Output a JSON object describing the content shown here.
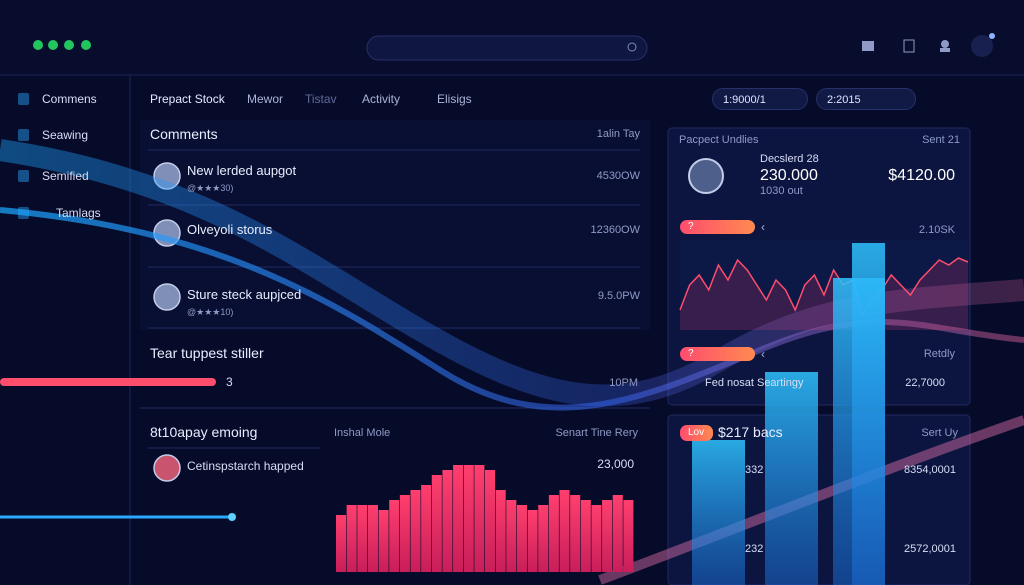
{
  "sidebar": {
    "items": [
      "Commens",
      "Seawing",
      "Semified",
      "Tamlags"
    ]
  },
  "nav": {
    "tabs": [
      "Prepact Stock",
      "Mewor",
      "Tistav",
      "Activity",
      "Elisigs"
    ],
    "pills": [
      "1:9000/1",
      "2:2015"
    ]
  },
  "comments": {
    "title": "Comments",
    "meta": "1alin Tay",
    "rows": [
      {
        "name": "New lerded aupgot",
        "sub": "@★★★30)",
        "value": "4530OW"
      },
      {
        "name": "Olveyoli storus",
        "value": "12360OW"
      },
      {
        "name": "Sture steck aupjced",
        "sub": "@★★★10)",
        "value": "9.5.0PW"
      }
    ]
  },
  "progress": {
    "title": "Tear tuppest stiller",
    "label": "3",
    "value": "10PM"
  },
  "activity": {
    "title": "8t10apay emoing",
    "col1": "Inshal Mole",
    "col2": "Senart Tine Rery",
    "row": "Cetinspstarch happed",
    "peak": "23,000",
    "bars": [
      57,
      67,
      67,
      67,
      62,
      72,
      77,
      82,
      87,
      97,
      102,
      107,
      107,
      107,
      102,
      82,
      72,
      67,
      62,
      67,
      77,
      82,
      77,
      72,
      67,
      72,
      77,
      72
    ]
  },
  "summary": {
    "title": "Pacpect Undlies",
    "meta": "Sent 21",
    "label": "Decslerd 28",
    "value": "230.000",
    "sub": "1030 out",
    "amount": "$4120.00",
    "tag1": "?",
    "tag1_value": "2.10SK",
    "line": [
      20,
      45,
      55,
      40,
      65,
      50,
      70,
      60,
      45,
      30,
      50,
      40,
      20,
      45,
      55,
      35,
      60,
      45,
      50,
      15,
      30,
      40,
      55,
      45,
      35,
      50,
      60,
      70,
      65,
      72,
      68
    ],
    "tag2": "?",
    "tag2_meta": "Retdly",
    "row": "Fed nosat Seartingy",
    "row_value": "22,7000"
  },
  "bottom": {
    "tag": "Lov",
    "title": "$217 bacs",
    "meta": "Sert Uy",
    "l1": "332",
    "r1": "8354,0001",
    "l2": "232",
    "r2": "2572,0001",
    "bars": [
      145,
      213,
      307,
      342
    ]
  }
}
